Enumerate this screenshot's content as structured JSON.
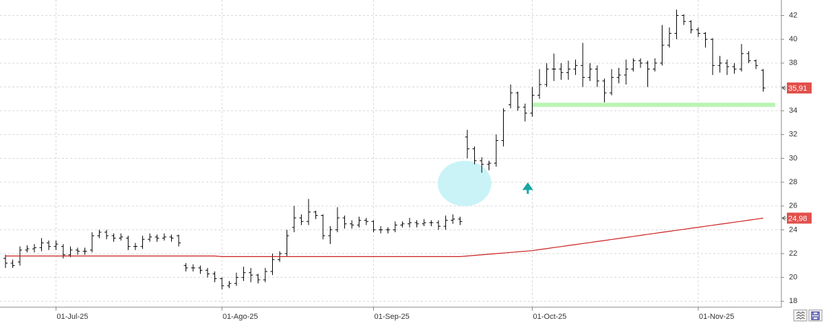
{
  "chart_data": {
    "type": "ohlc",
    "categories": [
      null,
      null,
      null,
      null,
      null,
      null,
      null,
      "01-Jul-25",
      null,
      null,
      null,
      null,
      null,
      null,
      null,
      null,
      null,
      null,
      null,
      null,
      null,
      null,
      null,
      null,
      null,
      null,
      null,
      null,
      null,
      null,
      "01-Ago-25",
      null,
      null,
      null,
      null,
      null,
      null,
      null,
      null,
      null,
      null,
      null,
      null,
      null,
      null,
      null,
      null,
      null,
      null,
      null,
      null,
      "01-Sep-25",
      null,
      null,
      null,
      null,
      null,
      null,
      null,
      null,
      null,
      null,
      null,
      null,
      null,
      null,
      null,
      null,
      null,
      null,
      null,
      null,
      null,
      "01-Oct-25",
      null,
      null,
      null,
      null,
      null,
      null,
      null,
      null,
      null,
      null,
      null,
      null,
      null,
      null,
      null,
      null,
      null,
      null,
      null,
      null,
      null,
      null,
      "01-Nov-25",
      null,
      null,
      null,
      null,
      null,
      null,
      null,
      null,
      null
    ],
    "open": [
      21.6,
      21.2,
      21.3,
      22.3,
      22.4,
      22.5,
      22.9,
      22.6,
      22.6,
      21.9,
      22.3,
      22.2,
      22.3,
      23.5,
      23.8,
      23.5,
      23.3,
      23.3,
      22.6,
      22.6,
      23.2,
      23.4,
      23.3,
      23.4,
      23.5,
      21.0,
      20.8,
      20.8,
      20.6,
      20.3,
      19.9,
      19.3,
      19.5,
      20.0,
      20.4,
      20.2,
      19.8,
      20.5,
      21.5,
      22.0,
      24.2,
      25.0,
      24.7,
      25.5,
      25.2,
      23.5,
      24.0,
      25.0,
      24.5,
      24.4,
      24.8,
      24.7,
      24.0,
      24.0,
      24.0,
      24.4,
      24.5,
      24.6,
      24.5,
      24.6,
      24.6,
      24.3,
      24.8,
      24.9,
      31.8,
      30.8,
      29.8,
      29.5,
      29.6,
      31.5,
      34.5,
      35.5,
      34.3,
      33.8,
      35.3,
      36.2,
      37.5,
      37.5,
      37.2,
      37.5,
      37.8,
      36.8,
      37.5,
      36.5,
      35.5,
      36.8,
      37.0,
      37.5,
      38.2,
      38.0,
      37.5,
      38.0,
      39.5,
      40.5,
      42.0,
      41.5,
      40.8,
      40.5,
      40.0,
      37.8,
      38.0,
      37.7,
      37.5,
      38.8,
      38.2,
      37.4
    ],
    "high": [
      21.9,
      21.5,
      22.6,
      22.7,
      22.8,
      23.3,
      23.1,
      23.1,
      22.8,
      22.6,
      22.5,
      22.5,
      23.8,
      24.0,
      24.0,
      23.7,
      23.7,
      23.5,
      22.9,
      23.5,
      23.7,
      23.6,
      23.7,
      23.6,
      23.6,
      21.2,
      21.1,
      21.0,
      20.8,
      20.5,
      20.0,
      19.7,
      20.4,
      20.9,
      20.8,
      20.3,
      20.8,
      22.0,
      22.2,
      24.0,
      26.0,
      25.3,
      26.6,
      25.6,
      25.3,
      24.3,
      25.9,
      25.2,
      24.8,
      25.1,
      25.0,
      24.8,
      24.3,
      24.2,
      24.7,
      24.7,
      25.0,
      24.8,
      24.9,
      24.8,
      24.8,
      25.2,
      25.3,
      25.1,
      32.4,
      31.0,
      30.1,
      29.8,
      32.0,
      34.2,
      36.2,
      35.6,
      34.6,
      36.0,
      37.5,
      38.0,
      38.8,
      38.0,
      38.2,
      38.3,
      39.7,
      38.0,
      37.8,
      36.7,
      37.5,
      37.6,
      38.3,
      38.4,
      38.4,
      38.2,
      38.4,
      41.2,
      41.0,
      42.5,
      42.1,
      41.6,
      41.0,
      40.6,
      40.1,
      38.6,
      38.3,
      38.0,
      39.6,
      39.0,
      38.3,
      37.5
    ],
    "low": [
      20.8,
      20.8,
      21.0,
      22.1,
      22.1,
      22.2,
      22.3,
      22.3,
      21.6,
      21.7,
      21.9,
      21.9,
      22.1,
      23.3,
      23.2,
      23.0,
      23.1,
      22.3,
      22.3,
      22.4,
      23.0,
      23.0,
      23.1,
      23.0,
      22.6,
      20.5,
      20.5,
      20.3,
      20.0,
      19.6,
      19.0,
      19.1,
      19.3,
      19.7,
      19.6,
      19.5,
      19.6,
      20.2,
      21.3,
      21.8,
      23.8,
      24.4,
      24.4,
      24.9,
      23.2,
      22.8,
      23.8,
      24.1,
      24.1,
      24.2,
      24.4,
      23.8,
      23.7,
      23.7,
      23.8,
      24.2,
      24.2,
      24.2,
      24.3,
      24.3,
      24.0,
      24.0,
      24.5,
      24.4,
      30.0,
      29.5,
      28.8,
      29.0,
      29.3,
      31.0,
      34.2,
      34.0,
      33.1,
      33.5,
      35.0,
      36.0,
      36.5,
      36.6,
      36.6,
      37.0,
      36.0,
      36.5,
      36.0,
      34.7,
      35.3,
      36.3,
      36.2,
      37.3,
      37.6,
      36.0,
      37.3,
      37.8,
      39.3,
      40.0,
      41.2,
      40.5,
      40.2,
      39.3,
      37.0,
      37.2,
      37.0,
      37.1,
      37.3,
      38.0,
      37.5,
      35.6
    ],
    "close": [
      21.2,
      21.0,
      22.3,
      22.4,
      22.5,
      22.9,
      22.6,
      22.8,
      21.9,
      22.3,
      22.2,
      22.2,
      23.5,
      23.8,
      23.5,
      23.3,
      23.4,
      22.6,
      22.6,
      23.2,
      23.4,
      23.3,
      23.4,
      23.3,
      22.9,
      20.8,
      20.8,
      20.6,
      20.3,
      19.9,
      19.3,
      19.5,
      20.0,
      20.4,
      20.2,
      19.8,
      20.5,
      21.5,
      22.0,
      23.5,
      25.0,
      24.7,
      25.5,
      25.2,
      23.5,
      24.0,
      25.0,
      24.5,
      24.4,
      24.8,
      24.7,
      24.0,
      24.0,
      24.0,
      24.4,
      24.5,
      24.6,
      24.5,
      24.6,
      24.6,
      24.3,
      24.8,
      24.9,
      24.7,
      30.8,
      29.8,
      29.5,
      29.6,
      31.5,
      34.0,
      35.5,
      34.3,
      33.8,
      35.3,
      36.2,
      37.5,
      37.5,
      37.2,
      37.5,
      37.8,
      36.8,
      37.5,
      36.5,
      35.5,
      36.8,
      37.0,
      37.5,
      38.2,
      38.0,
      37.5,
      38.0,
      39.5,
      40.5,
      42.0,
      41.5,
      40.8,
      40.5,
      40.0,
      37.8,
      38.0,
      37.7,
      37.5,
      38.8,
      38.2,
      37.8,
      35.91
    ],
    "color": "#000000",
    "overlay": {
      "color": "#cc1f1f",
      "values": [
        21.8,
        21.8,
        21.8,
        21.8,
        21.8,
        21.8,
        21.8,
        21.8,
        21.8,
        21.8,
        21.8,
        21.8,
        21.8,
        21.8,
        21.8,
        21.8,
        21.8,
        21.8,
        21.8,
        21.8,
        21.8,
        21.8,
        21.8,
        21.8,
        21.8,
        21.8,
        21.8,
        21.8,
        21.8,
        21.8,
        21.75,
        21.75,
        21.75,
        21.75,
        21.75,
        21.75,
        21.75,
        21.75,
        21.75,
        21.75,
        21.75,
        21.75,
        21.75,
        21.75,
        21.75,
        21.75,
        21.75,
        21.75,
        21.75,
        21.75,
        21.75,
        21.75,
        21.75,
        21.75,
        21.75,
        21.75,
        21.75,
        21.75,
        21.75,
        21.75,
        21.75,
        21.75,
        21.75,
        21.75,
        21.8,
        21.85,
        21.9,
        21.95,
        22.0,
        22.05,
        22.1,
        22.15,
        22.2,
        22.25,
        22.34,
        22.42,
        22.51,
        22.59,
        22.68,
        22.76,
        22.85,
        22.93,
        23.02,
        23.1,
        23.19,
        23.27,
        23.36,
        23.44,
        23.53,
        23.62,
        23.7,
        23.79,
        23.87,
        23.96,
        24.04,
        24.13,
        24.21,
        24.3,
        24.38,
        24.47,
        24.55,
        24.64,
        24.72,
        24.81,
        24.89,
        24.98
      ]
    },
    "support": {
      "value": 34.5,
      "color": "#b9f4b2"
    },
    "price_tags": [
      {
        "value": 35.91,
        "label": "35,91",
        "color": "#e2504c"
      },
      {
        "value": 24.98,
        "label": "24,98",
        "color": "#e2504c"
      }
    ],
    "ylim": [
      17.5,
      43.3
    ],
    "yticks": [
      18,
      20,
      22,
      24,
      26,
      28,
      30,
      32,
      34,
      36,
      38,
      40,
      42
    ],
    "grid": true
  }
}
